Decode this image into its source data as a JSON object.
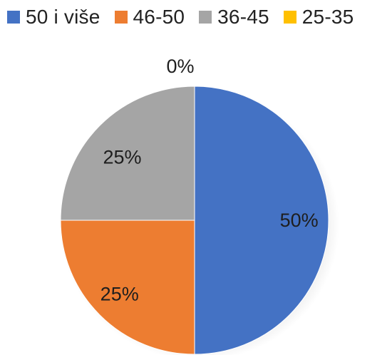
{
  "chart_data": {
    "type": "pie",
    "title": "",
    "legend_position": "top",
    "categories": [
      "50 i više",
      "46-50",
      "36-45",
      "25-35"
    ],
    "values": [
      50,
      25,
      25,
      0
    ],
    "labels": [
      "50%",
      "25%",
      "25%",
      "0%"
    ],
    "colors": [
      "#4472c4",
      "#ed7d31",
      "#a5a5a5",
      "#ffc000"
    ]
  }
}
